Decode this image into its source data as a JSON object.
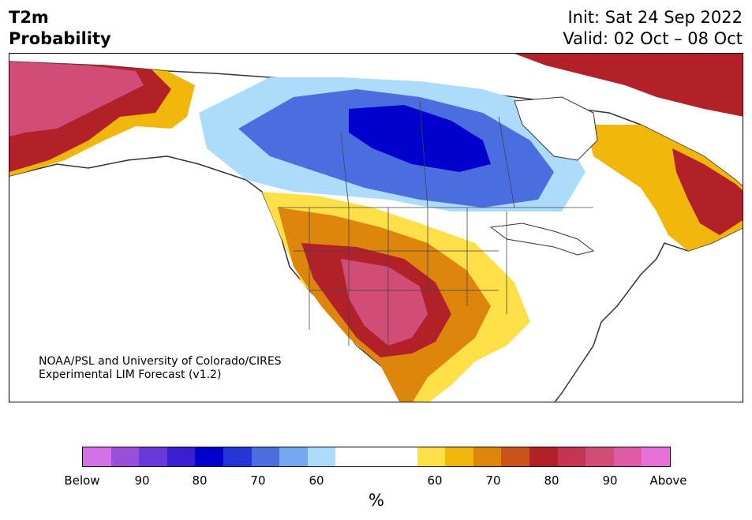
{
  "title": {
    "line1": "T2m",
    "line2": "Probability"
  },
  "info": {
    "init": "Init: Sat 24 Sep 2022",
    "valid": "Valid: 02 Oct – 08 Oct"
  },
  "credit": {
    "line1": "NOAA/PSL and University of Colorado/CIRES",
    "line2": "Experimental LIM Forecast (v1.2)"
  },
  "legend": {
    "unit": "%",
    "labels": [
      "Below",
      "90",
      "80",
      "70",
      "60",
      "60",
      "70",
      "80",
      "90",
      "Above"
    ],
    "below_colors": [
      "#d470e8",
      "#9a4fdc",
      "#6c37d8",
      "#3a1ed2",
      "#0000cc",
      "#2436d8",
      "#4a6de0",
      "#75a9ef",
      "#acdbfb"
    ],
    "neutral_color": "#ffffff",
    "above_colors": [
      "#fde047",
      "#f1b60a",
      "#de850e",
      "#cb5418",
      "#b2202a",
      "#c33550",
      "#d14d78",
      "#de5ca5",
      "#e770d8"
    ]
  }
}
